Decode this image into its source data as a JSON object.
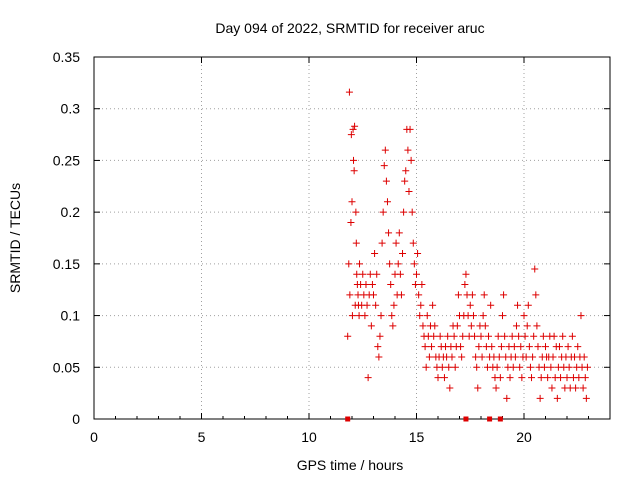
{
  "chart_data": {
    "type": "scatter",
    "title": "Day 094 of 2022, SRMTID for receiver aruc",
    "xlabel": "GPS time / hours",
    "ylabel": "SRMTID / TECUs",
    "xlim": [
      0,
      24
    ],
    "ylim": [
      0,
      0.35
    ],
    "x_ticks": [
      0,
      5,
      10,
      15,
      20
    ],
    "x_tick_labels": [
      "0",
      "5",
      "10",
      "15",
      "20"
    ],
    "y_ticks": [
      0,
      0.05,
      0.1,
      0.15,
      0.2,
      0.25,
      0.3,
      0.35
    ],
    "y_tick_labels": [
      "0",
      "0.05",
      "0.1",
      "0.15",
      "0.2",
      "0.25",
      "0.3",
      "0.35"
    ],
    "grid": true,
    "marker": "plus",
    "colors": {
      "series": "#dd0000",
      "grid": "#a0a0a0",
      "axes": "#000000"
    },
    "series": [
      {
        "name": "SRMTID",
        "points": [
          [
            11.8,
            0.08
          ],
          [
            11.85,
            0.15
          ],
          [
            11.88,
            0.316
          ],
          [
            11.9,
            0.12
          ],
          [
            11.95,
            0.19
          ],
          [
            11.97,
            0.275
          ],
          [
            12.0,
            0.21
          ],
          [
            12.02,
            0.1
          ],
          [
            12.05,
            0.28
          ],
          [
            12.07,
            0.25
          ],
          [
            12.1,
            0.24
          ],
          [
            12.12,
            0.283
          ],
          [
            12.15,
            0.11
          ],
          [
            12.18,
            0.2
          ],
          [
            12.2,
            0.17
          ],
          [
            12.22,
            0.14
          ],
          [
            12.25,
            0.13
          ],
          [
            12.28,
            0.12
          ],
          [
            12.3,
            0.11
          ],
          [
            12.33,
            0.1
          ],
          [
            12.35,
            0.15
          ],
          [
            12.4,
            0.13
          ],
          [
            12.45,
            0.11
          ],
          [
            12.5,
            0.14
          ],
          [
            12.55,
            0.12
          ],
          [
            12.6,
            0.1
          ],
          [
            12.65,
            0.13
          ],
          [
            12.7,
            0.11
          ],
          [
            12.75,
            0.04
          ],
          [
            12.8,
            0.12
          ],
          [
            12.85,
            0.14
          ],
          [
            12.9,
            0.09
          ],
          [
            12.95,
            0.13
          ],
          [
            13.0,
            0.12
          ],
          [
            13.05,
            0.16
          ],
          [
            13.1,
            0.11
          ],
          [
            13.15,
            0.14
          ],
          [
            13.2,
            0.07
          ],
          [
            13.25,
            0.06
          ],
          [
            13.3,
            0.08
          ],
          [
            13.35,
            0.1
          ],
          [
            13.4,
            0.17
          ],
          [
            13.45,
            0.2
          ],
          [
            13.5,
            0.245
          ],
          [
            13.55,
            0.26
          ],
          [
            13.6,
            0.23
          ],
          [
            13.65,
            0.21
          ],
          [
            13.7,
            0.18
          ],
          [
            13.75,
            0.15
          ],
          [
            13.8,
            0.13
          ],
          [
            13.85,
            0.1
          ],
          [
            13.9,
            0.09
          ],
          [
            13.95,
            0.11
          ],
          [
            14.0,
            0.14
          ],
          [
            14.05,
            0.17
          ],
          [
            14.1,
            0.12
          ],
          [
            14.15,
            0.15
          ],
          [
            14.2,
            0.18
          ],
          [
            14.25,
            0.14
          ],
          [
            14.3,
            0.12
          ],
          [
            14.35,
            0.16
          ],
          [
            14.4,
            0.2
          ],
          [
            14.45,
            0.23
          ],
          [
            14.5,
            0.24
          ],
          [
            14.55,
            0.28
          ],
          [
            14.6,
            0.26
          ],
          [
            14.65,
            0.22
          ],
          [
            14.7,
            0.28
          ],
          [
            14.75,
            0.25
          ],
          [
            14.8,
            0.2
          ],
          [
            14.85,
            0.17
          ],
          [
            14.9,
            0.15
          ],
          [
            14.95,
            0.13
          ],
          [
            15.0,
            0.14
          ],
          [
            15.05,
            0.16
          ],
          [
            15.1,
            0.12
          ],
          [
            15.15,
            0.1
          ],
          [
            15.2,
            0.11
          ],
          [
            15.25,
            0.13
          ],
          [
            15.3,
            0.09
          ],
          [
            15.35,
            0.08
          ],
          [
            15.4,
            0.07
          ],
          [
            15.45,
            0.05
          ],
          [
            15.5,
            0.1
          ],
          [
            15.55,
            0.08
          ],
          [
            15.6,
            0.06
          ],
          [
            15.65,
            0.09
          ],
          [
            15.7,
            0.07
          ],
          [
            15.75,
            0.11
          ],
          [
            15.8,
            0.08
          ],
          [
            15.85,
            0.09
          ],
          [
            15.9,
            0.06
          ],
          [
            15.95,
            0.05
          ],
          [
            16.0,
            0.04
          ],
          [
            16.05,
            0.06
          ],
          [
            16.1,
            0.08
          ],
          [
            16.15,
            0.07
          ],
          [
            16.2,
            0.05
          ],
          [
            16.25,
            0.06
          ],
          [
            16.3,
            0.04
          ],
          [
            16.35,
            0.07
          ],
          [
            16.4,
            0.06
          ],
          [
            16.45,
            0.08
          ],
          [
            16.5,
            0.05
          ],
          [
            16.55,
            0.03
          ],
          [
            16.6,
            0.07
          ],
          [
            16.65,
            0.06
          ],
          [
            16.7,
            0.09
          ],
          [
            16.75,
            0.08
          ],
          [
            16.8,
            0.05
          ],
          [
            16.85,
            0.07
          ],
          [
            16.9,
            0.09
          ],
          [
            16.95,
            0.12
          ],
          [
            17.0,
            0.1
          ],
          [
            17.05,
            0.07
          ],
          [
            17.1,
            0.06
          ],
          [
            17.15,
            0.08
          ],
          [
            17.2,
            0.1
          ],
          [
            17.25,
            0.13
          ],
          [
            17.3,
            0.14
          ],
          [
            17.35,
            0.12
          ],
          [
            17.4,
            0.1
          ],
          [
            17.45,
            0.08
          ],
          [
            17.5,
            0.11
          ],
          [
            17.55,
            0.09
          ],
          [
            17.6,
            0.12
          ],
          [
            17.65,
            0.1
          ],
          [
            17.7,
            0.08
          ],
          [
            17.75,
            0.06
          ],
          [
            17.8,
            0.05
          ],
          [
            17.85,
            0.03
          ],
          [
            17.9,
            0.07
          ],
          [
            17.95,
            0.09
          ],
          [
            18.0,
            0.08
          ],
          [
            18.05,
            0.06
          ],
          [
            18.1,
            0.1
          ],
          [
            18.15,
            0.12
          ],
          [
            18.2,
            0.09
          ],
          [
            18.25,
            0.07
          ],
          [
            18.3,
            0.05
          ],
          [
            18.35,
            0.08
          ],
          [
            18.4,
            0.06
          ],
          [
            18.45,
            0.11
          ],
          [
            18.5,
            0.07
          ],
          [
            18.55,
            0.05
          ],
          [
            18.6,
            0.06
          ],
          [
            18.65,
            0.04
          ],
          [
            18.7,
            0.03
          ],
          [
            18.75,
            0.05
          ],
          [
            18.8,
            0.08
          ],
          [
            18.85,
            0.06
          ],
          [
            18.9,
            0.04
          ],
          [
            18.95,
            0.07
          ],
          [
            19.0,
            0.1
          ],
          [
            19.05,
            0.12
          ],
          [
            19.1,
            0.08
          ],
          [
            19.15,
            0.06
          ],
          [
            19.2,
            0.02
          ],
          [
            19.25,
            0.05
          ],
          [
            19.3,
            0.07
          ],
          [
            19.35,
            0.04
          ],
          [
            19.4,
            0.06
          ],
          [
            19.45,
            0.08
          ],
          [
            19.5,
            0.05
          ],
          [
            19.55,
            0.07
          ],
          [
            19.6,
            0.06
          ],
          [
            19.65,
            0.09
          ],
          [
            19.7,
            0.11
          ],
          [
            19.75,
            0.08
          ],
          [
            19.8,
            0.05
          ],
          [
            19.85,
            0.07
          ],
          [
            19.9,
            0.04
          ],
          [
            19.95,
            0.06
          ],
          [
            20.0,
            0.1
          ],
          [
            20.05,
            0.08
          ],
          [
            20.1,
            0.06
          ],
          [
            20.15,
            0.09
          ],
          [
            20.2,
            0.11
          ],
          [
            20.25,
            0.07
          ],
          [
            20.3,
            0.05
          ],
          [
            20.35,
            0.04
          ],
          [
            20.4,
            0.06
          ],
          [
            20.45,
            0.08
          ],
          [
            20.5,
            0.145
          ],
          [
            20.55,
            0.12
          ],
          [
            20.6,
            0.09
          ],
          [
            20.65,
            0.07
          ],
          [
            20.7,
            0.05
          ],
          [
            20.75,
            0.02
          ],
          [
            20.8,
            0.04
          ],
          [
            20.85,
            0.06
          ],
          [
            20.9,
            0.08
          ],
          [
            20.95,
            0.05
          ],
          [
            21.0,
            0.07
          ],
          [
            21.05,
            0.06
          ],
          [
            21.1,
            0.04
          ],
          [
            21.15,
            0.06
          ],
          [
            21.2,
            0.08
          ],
          [
            21.25,
            0.05
          ],
          [
            21.3,
            0.03
          ],
          [
            21.35,
            0.06
          ],
          [
            21.4,
            0.08
          ],
          [
            21.45,
            0.04
          ],
          [
            21.5,
            0.07
          ],
          [
            21.55,
            0.02
          ],
          [
            21.6,
            0.05
          ],
          [
            21.65,
            0.07
          ],
          [
            21.7,
            0.04
          ],
          [
            21.75,
            0.06
          ],
          [
            21.8,
            0.08
          ],
          [
            21.85,
            0.05
          ],
          [
            21.9,
            0.03
          ],
          [
            21.95,
            0.06
          ],
          [
            22.0,
            0.04
          ],
          [
            22.05,
            0.07
          ],
          [
            22.1,
            0.05
          ],
          [
            22.15,
            0.03
          ],
          [
            22.2,
            0.06
          ],
          [
            22.25,
            0.08
          ],
          [
            22.3,
            0.04
          ],
          [
            22.35,
            0.06
          ],
          [
            22.4,
            0.03
          ],
          [
            22.45,
            0.05
          ],
          [
            22.5,
            0.07
          ],
          [
            22.55,
            0.04
          ],
          [
            22.6,
            0.06
          ],
          [
            22.65,
            0.1
          ],
          [
            22.7,
            0.05
          ],
          [
            22.75,
            0.03
          ],
          [
            22.8,
            0.06
          ],
          [
            22.85,
            0.04
          ],
          [
            22.9,
            0.02
          ],
          [
            22.95,
            0.05
          ]
        ]
      }
    ],
    "bottom_markers": {
      "name": "zero-axis markers",
      "x": [
        11.8,
        17.3,
        18.4,
        18.9
      ]
    }
  }
}
